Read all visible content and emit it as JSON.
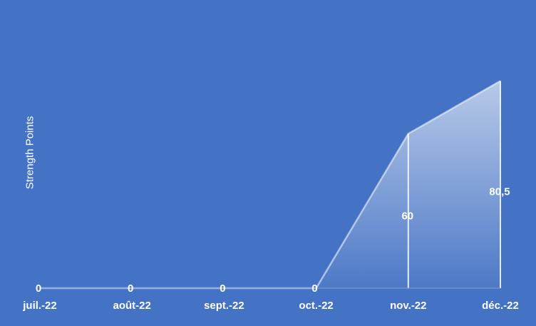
{
  "chart_data": {
    "type": "area",
    "categories": [
      "juil.-22",
      "août-22",
      "sept.-22",
      "oct.-22",
      "nov.-22",
      "déc.-22"
    ],
    "series": [
      {
        "values": [
          0,
          0,
          0,
          0,
          60,
          80.5
        ]
      }
    ],
    "data_labels": [
      "0",
      "0",
      "0",
      "0",
      "60",
      "80,5"
    ],
    "title": "",
    "xlabel": "",
    "ylabel": "Strength Points",
    "ylim": [
      0,
      110
    ],
    "grid": false,
    "legend": "none",
    "colors": {
      "background": "#4472C4",
      "area": "#FFFFFF",
      "axis": "#7FA0D8",
      "text": "#FFFFFF"
    }
  }
}
